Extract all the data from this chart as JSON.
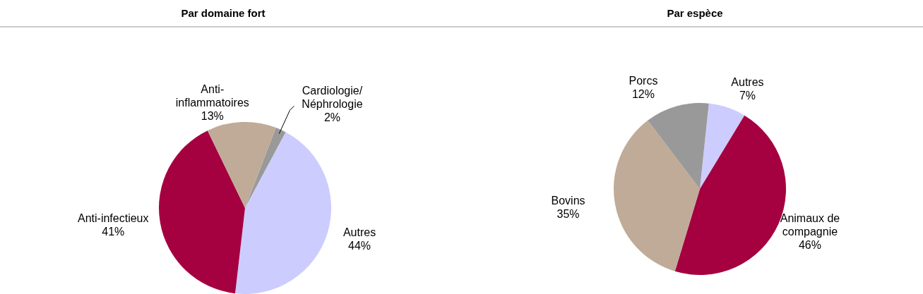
{
  "chart_data": [
    {
      "type": "pie",
      "title": "Par domaine fort",
      "categories": [
        "Cardiologie/Néphrologie",
        "Autres",
        "Anti-infectieux",
        "Anti-inflammatoires"
      ],
      "values": [
        2,
        44,
        41,
        13
      ],
      "colors": [
        "#999999",
        "#ccccff",
        "#a50040",
        "#bfab98"
      ],
      "value_labels": [
        "2%",
        "44%",
        "41%",
        "13%"
      ]
    },
    {
      "type": "pie",
      "title": "Par espèce",
      "categories": [
        "Autres",
        "Animaux de compagnie",
        "Bovins",
        "Porcs"
      ],
      "values": [
        7,
        46,
        35,
        12
      ],
      "colors": [
        "#ccccff",
        "#a50040",
        "#bfab98",
        "#999999"
      ],
      "value_labels": [
        "7%",
        "46%",
        "35%",
        "12%"
      ]
    }
  ]
}
